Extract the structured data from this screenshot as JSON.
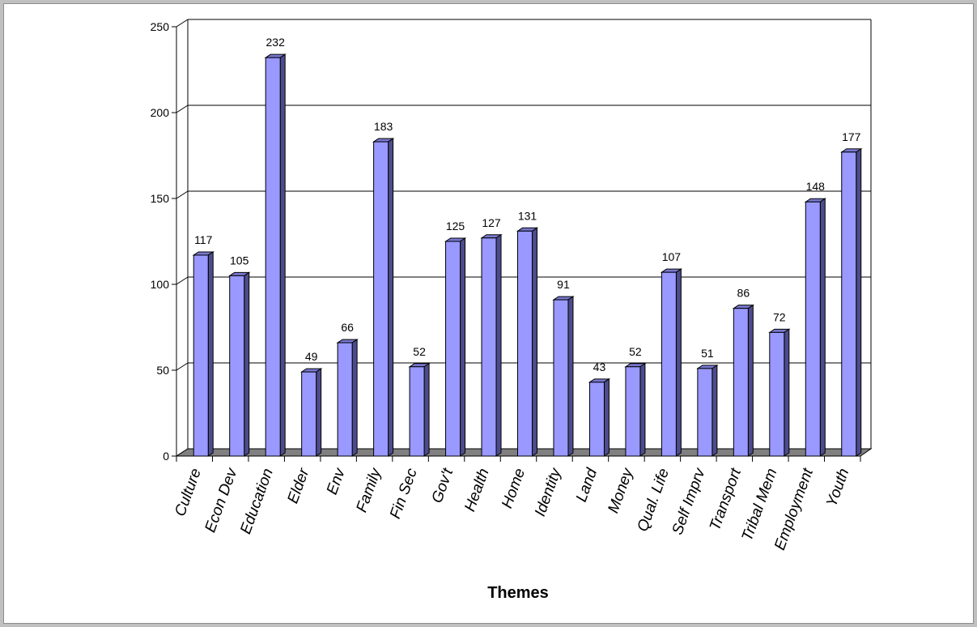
{
  "chart_data": {
    "type": "bar",
    "title": "",
    "xlabel": "Themes",
    "ylabel": "",
    "ylim": [
      0,
      250
    ],
    "yticks": [
      0,
      50,
      100,
      150,
      200,
      250
    ],
    "grid": true,
    "legend": "none",
    "categories": [
      "Culture",
      "Econ Dev",
      "Education",
      "Elder",
      "Env",
      "Family",
      "Fin Sec",
      "Gov't",
      "Health",
      "Home",
      "Identity",
      "Land",
      "Money",
      "Qual. Life",
      "Self Imprv",
      "Transport",
      "Tribal Mem",
      "Employment",
      "Youth"
    ],
    "values": [
      117,
      105,
      232,
      49,
      66,
      183,
      52,
      125,
      127,
      131,
      91,
      43,
      52,
      107,
      51,
      86,
      72,
      148,
      177
    ],
    "colors": {
      "bar_front": "#9999ff",
      "bar_side": "#4c4c8c",
      "bar_top": "#7878d0",
      "floor": "#808080",
      "frame_bg": "#c0c0c0"
    }
  }
}
